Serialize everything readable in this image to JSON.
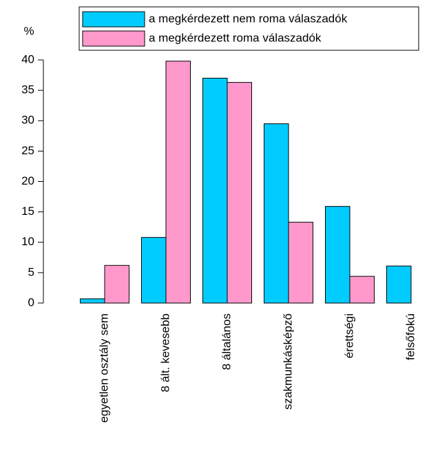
{
  "chart_data": {
    "type": "bar",
    "y_label": "%",
    "categories": [
      "egyetlen osztály sem",
      "8 ált. kevesebb",
      "8 általános",
      "szakmunkásképző",
      "érettségi",
      "felsőfokú"
    ],
    "series": [
      {
        "name": "a megkérdezett nem roma válaszadók",
        "color": "#00ccff",
        "values": [
          0.7,
          10.8,
          37,
          29.5,
          15.9,
          6.1
        ]
      },
      {
        "name": "a megkérdezett roma válaszadók",
        "color": "#ff99cc",
        "values": [
          6.2,
          39.8,
          36.3,
          13.3,
          4.4,
          null
        ]
      }
    ],
    "ylim": [
      0,
      40
    ],
    "yticks": [
      0,
      5,
      10,
      15,
      20,
      25,
      30,
      35,
      40
    ],
    "legend": "top"
  }
}
